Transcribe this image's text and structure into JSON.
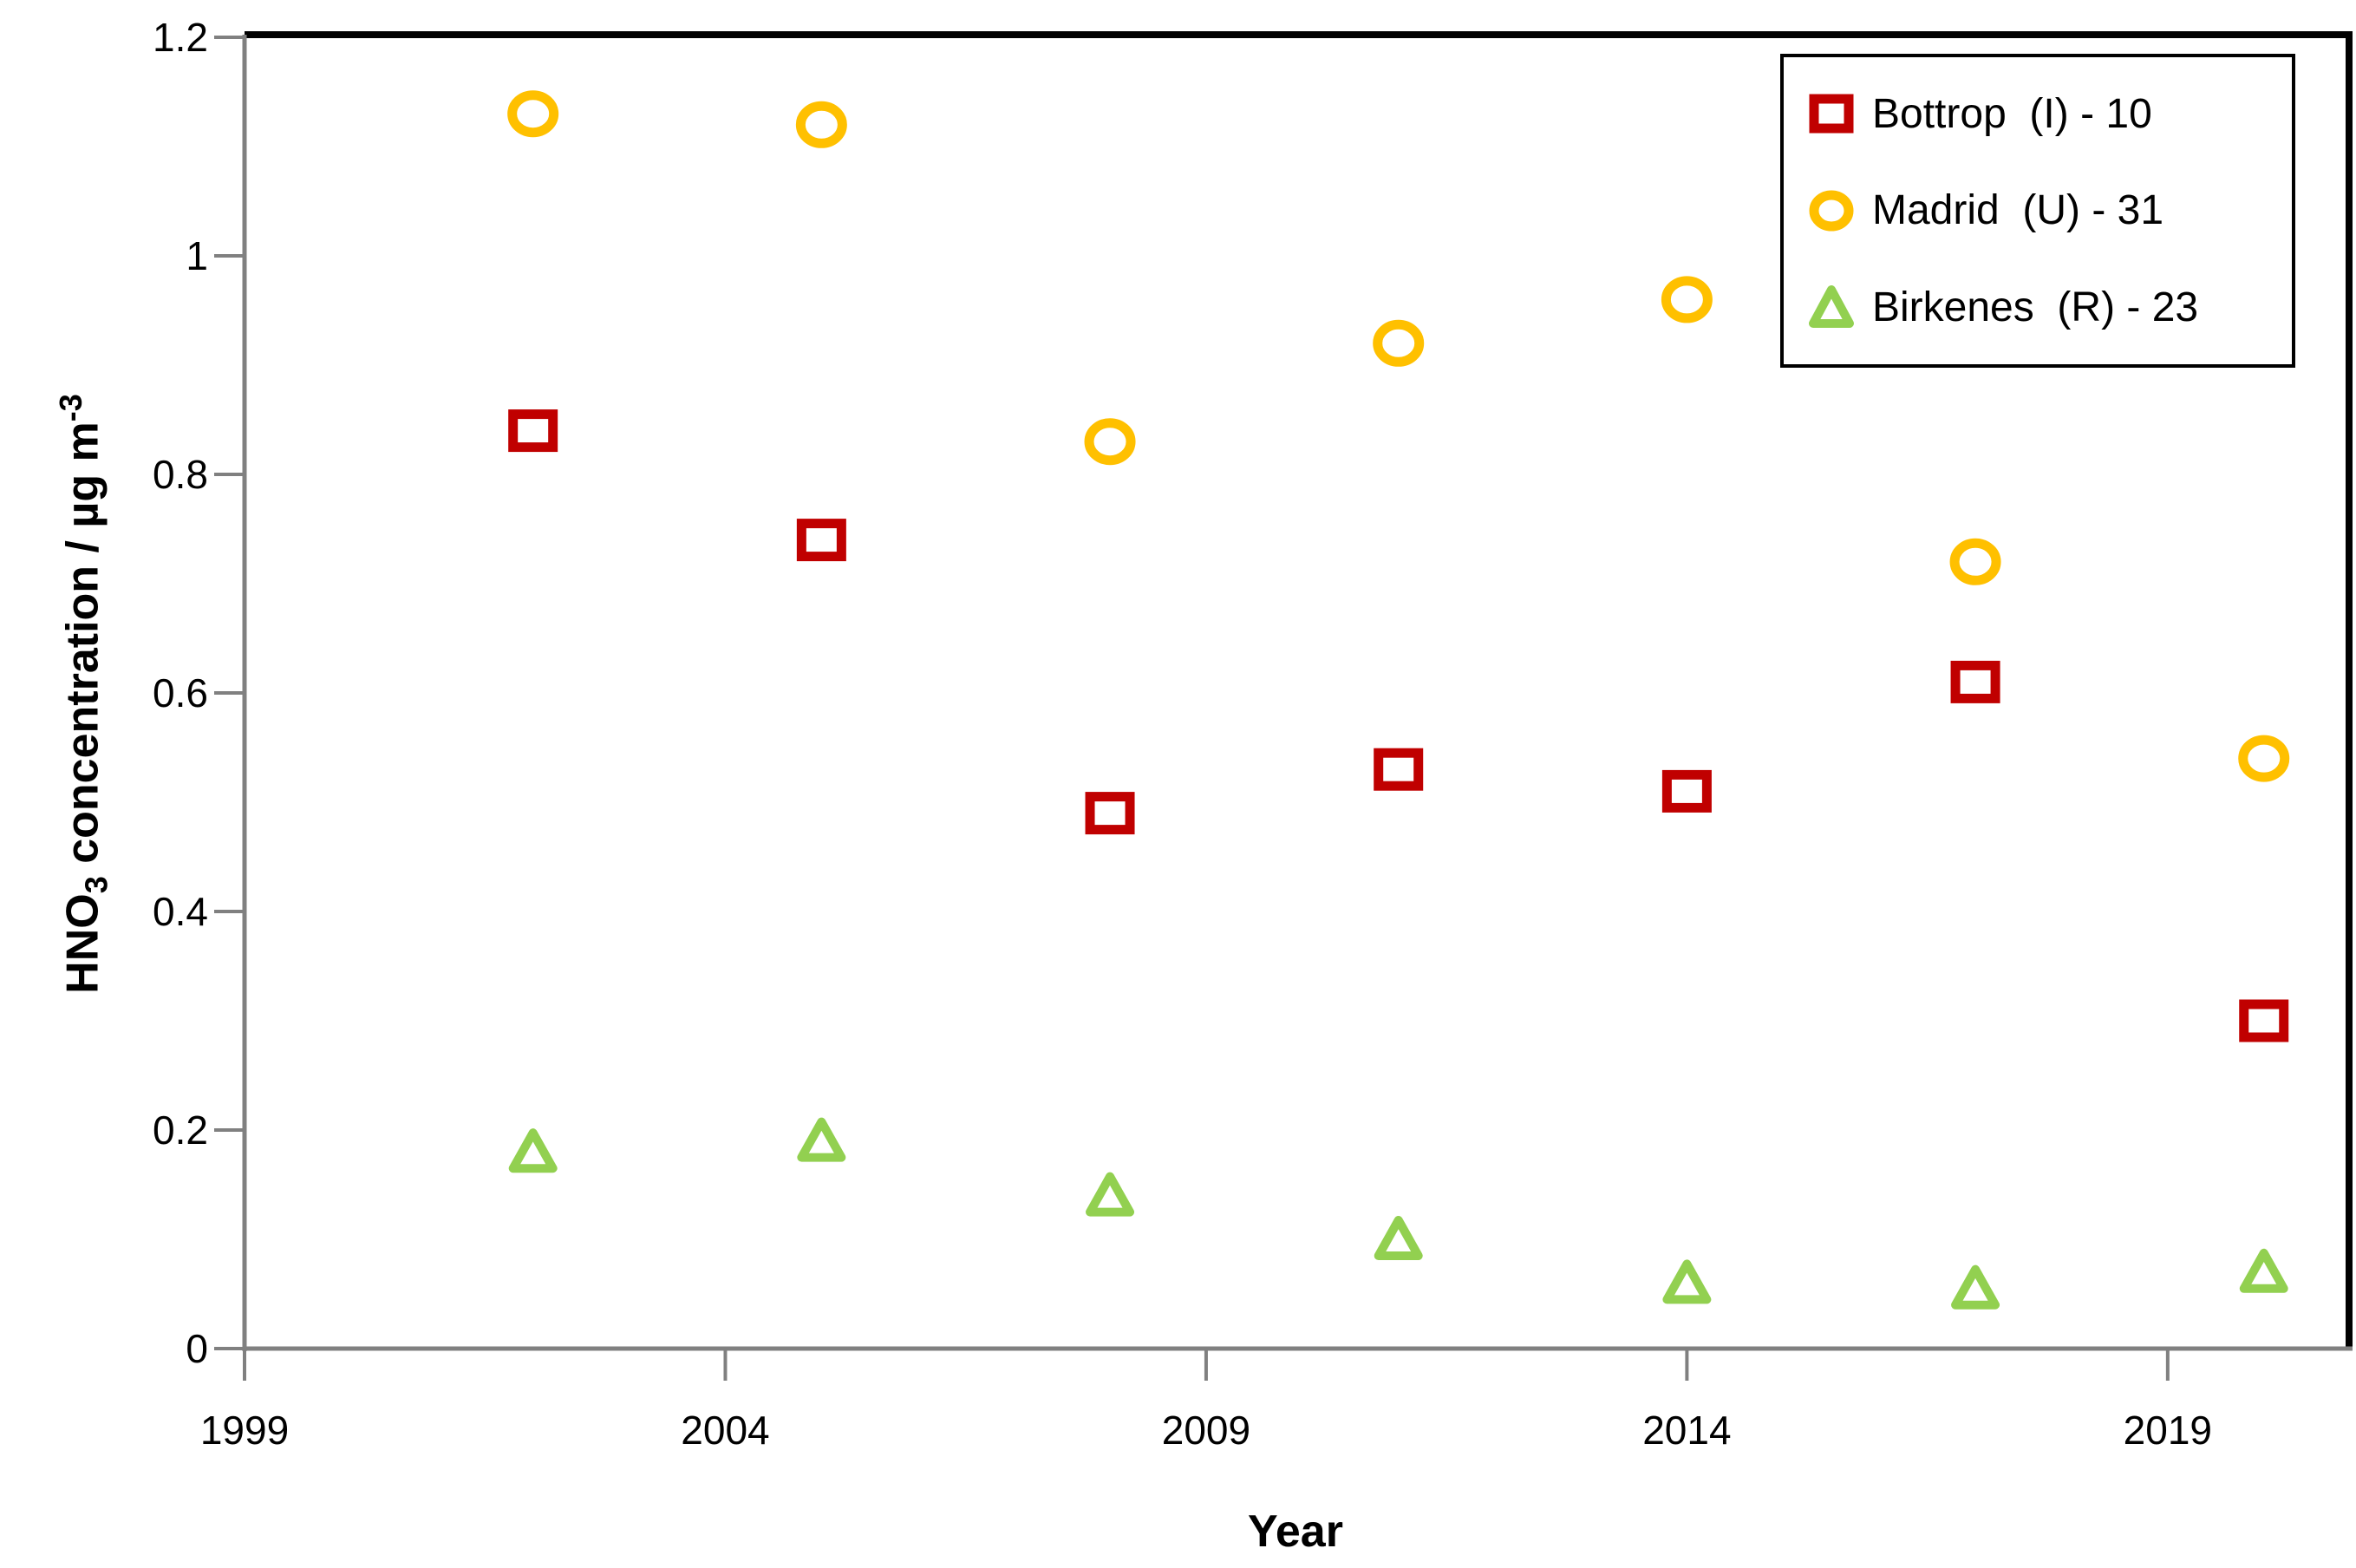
{
  "chart_data": {
    "type": "scatter",
    "title": "",
    "xlabel": "Year",
    "ylabel_parts": {
      "base": "HNO",
      "sub": "3",
      "mid": " concentration / µg m",
      "sup": "-3"
    },
    "x": [
      2002,
      2005,
      2008,
      2011,
      2014,
      2017,
      2020
    ],
    "series": [
      {
        "name": "Bottrop  (I) - 10",
        "marker": "square",
        "color": "#C00000",
        "values": [
          0.84,
          0.74,
          0.49,
          0.53,
          0.51,
          0.61,
          0.3
        ]
      },
      {
        "name": "Madrid  (U) - 31",
        "marker": "circle",
        "color": "#FFC000",
        "values": [
          1.13,
          1.12,
          0.83,
          0.92,
          0.96,
          0.72,
          0.54
        ]
      },
      {
        "name": "Birkenes  (R) - 23",
        "marker": "triangle",
        "color": "#92D050",
        "values": [
          0.18,
          0.19,
          0.14,
          0.1,
          0.06,
          0.055,
          0.07
        ]
      }
    ],
    "x_ticks": [
      "1999",
      "2004",
      "2009",
      "2014",
      "2019"
    ],
    "x_tick_values": [
      1999,
      2004,
      2009,
      2014,
      2019
    ],
    "y_ticks": [
      "0",
      "0.2",
      "0.4",
      "0.6",
      "0.8",
      "1",
      "1.2"
    ],
    "y_tick_values": [
      0,
      0.2,
      0.4,
      0.6,
      0.8,
      1,
      1.2
    ],
    "xlim": [
      1999,
      2020.85
    ],
    "ylim": [
      0,
      1.2
    ],
    "grid": false,
    "legend_position": "top-right",
    "axis_color": "#808080",
    "border_color": "#000000",
    "background_color": "#FFFFFF"
  }
}
